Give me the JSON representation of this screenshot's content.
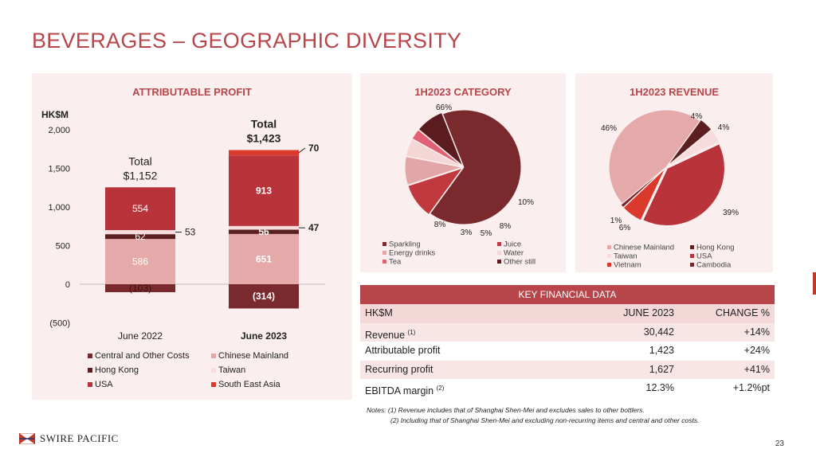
{
  "page": {
    "title": "BEVERAGES – GEOGRAPHIC DIVERSITY",
    "page_number": "23",
    "logo_text": "SWIRE PACIFIC",
    "colors": {
      "accent": "#b8454a",
      "central_other": "#7a2a2c",
      "chinese_mainland": "#e6a9a9",
      "hong_kong": "#5c1f20",
      "taiwan": "#f6dcdc",
      "usa": "#b8343a",
      "south_east_asia": "#d93a2b"
    }
  },
  "profit": {
    "panel_title": "ATTRIBUTABLE PROFIT",
    "unit_label": "HK$M",
    "totals": [
      {
        "label1": "Total",
        "label2": "$1,152"
      },
      {
        "label1": "Total",
        "label2": "$1,423"
      }
    ]
  },
  "category": {
    "panel_title": "1H2023 CATEGORY"
  },
  "revenue": {
    "panel_title": "1H2023 REVENUE"
  },
  "kfd": {
    "title": "KEY FINANCIAL DATA",
    "header": [
      "HK$M",
      "JUNE 2023",
      "CHANGE %"
    ],
    "rows": [
      {
        "label": "Revenue",
        "sup": "(1)",
        "value": "30,442",
        "change": "+14%"
      },
      {
        "label": "Attributable profit",
        "sup": "",
        "value": "1,423",
        "change": "+24%"
      },
      {
        "label": "Recurring profit",
        "sup": "",
        "value": "1,627",
        "change": "+41%"
      },
      {
        "label": "EBITDA margin",
        "sup": "(2)",
        "value": "12.3%",
        "change": "+1.2%pt"
      }
    ]
  },
  "notes": {
    "line1": "Notes: (1) Revenue includes that of Shanghai Shen-Mei and excludes sales to other bottlers.",
    "line2": "(2) Including that of Shanghai Shen-Mei and excluding non-recurring items and central and other costs."
  },
  "chart_data": [
    {
      "type": "bar",
      "stacked": true,
      "title": "ATTRIBUTABLE PROFIT",
      "ylabel": "HK$M",
      "ylim": [
        -500,
        2000
      ],
      "yticks": [
        "2,000",
        "1,500",
        "1,000",
        "500",
        "0",
        "(500)"
      ],
      "categories": [
        "June 2022",
        "June 2023"
      ],
      "series": [
        {
          "name": "Central and Other Costs",
          "values": [
            -103,
            -314
          ],
          "labels": [
            "(103)",
            "(314)"
          ]
        },
        {
          "name": "Chinese Mainland",
          "values": [
            586,
            651
          ],
          "labels": [
            "586",
            "651"
          ]
        },
        {
          "name": "Hong Kong",
          "values": [
            62,
            56
          ],
          "labels": [
            "62",
            "56"
          ]
        },
        {
          "name": "Taiwan",
          "values": [
            53,
            47
          ],
          "labels": [
            "53",
            "47"
          ]
        },
        {
          "name": "USA",
          "values": [
            554,
            913
          ],
          "labels": [
            "554",
            "913"
          ]
        },
        {
          "name": "South East Asia",
          "values": [
            0,
            70
          ],
          "labels": [
            "",
            "70"
          ]
        }
      ],
      "legend": "bottom"
    },
    {
      "type": "pie",
      "title": "1H2023 CATEGORY",
      "labels": [
        "Sparkling",
        "Juice",
        "Energy drinks",
        "Water",
        "Tea",
        "Other still"
      ],
      "values": [
        66,
        10,
        8,
        5,
        3,
        8
      ],
      "value_labels": [
        "66%",
        "10%",
        "8%",
        "5%",
        "3%",
        "8%"
      ],
      "legend": "bottom"
    },
    {
      "type": "pie",
      "title": "1H2023 REVENUE",
      "labels": [
        "Chinese Mainland",
        "Hong Kong",
        "Taiwan",
        "USA",
        "Vietnam",
        "Cambodia"
      ],
      "values": [
        46,
        4,
        4,
        39,
        6,
        1
      ],
      "value_labels": [
        "46%",
        "4%",
        "4%",
        "39%",
        "6%",
        "1%"
      ],
      "legend": "bottom"
    }
  ]
}
